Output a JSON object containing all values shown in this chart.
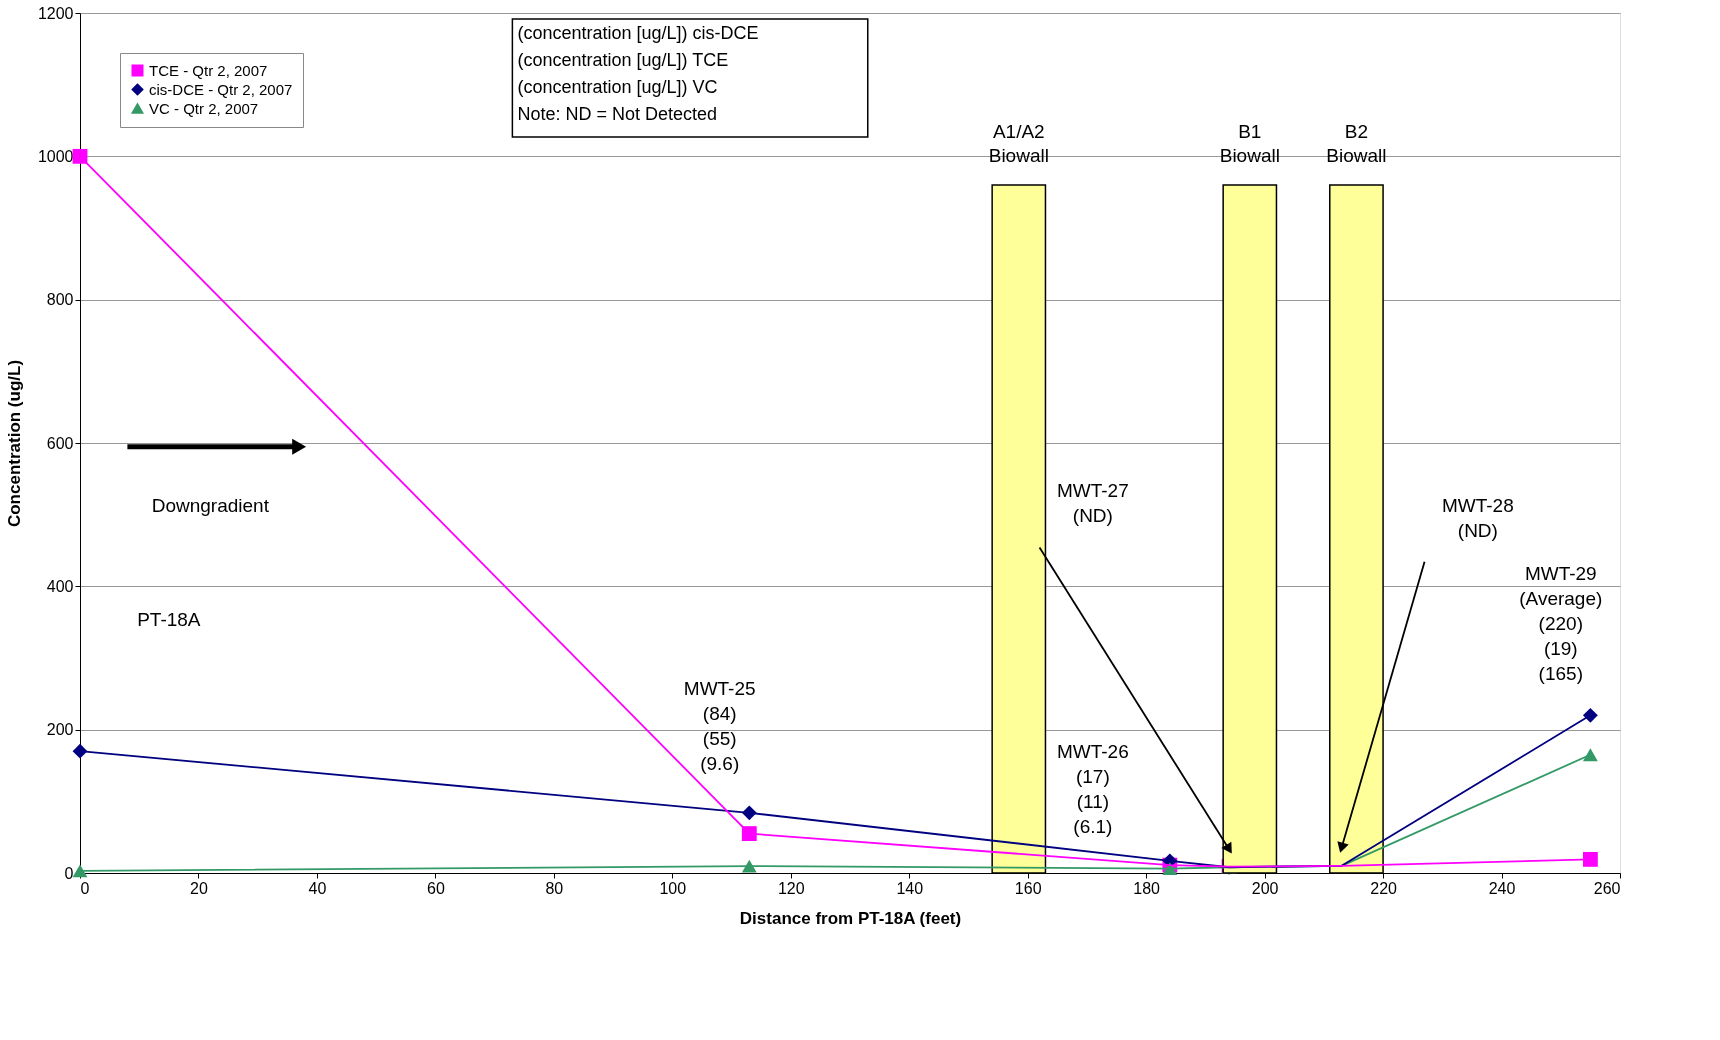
{
  "chart_data": {
    "type": "line",
    "xlabel": "Distance from PT-18A (feet)",
    "ylabel": "Concentration (ug/L)",
    "x": [
      0,
      113,
      184,
      194,
      213,
      255
    ],
    "series": [
      {
        "name": "TCE - Qtr 2, 2007",
        "color": "#ff00ff",
        "marker": "square",
        "values": [
          1000,
          55,
          11,
          9,
          10,
          19
        ]
      },
      {
        "name": "cis-DCE - Qtr 2, 2007",
        "color": "#000080",
        "marker": "diamond",
        "values": [
          170,
          84,
          17,
          8,
          10,
          220
        ]
      },
      {
        "name": "VC - Qtr 2, 2007",
        "color": "#339966",
        "marker": "triangle",
        "values": [
          3,
          9.6,
          6.1,
          8,
          10,
          165
        ]
      }
    ],
    "xlim": [
      0,
      260
    ],
    "xticks": [
      0,
      20,
      40,
      60,
      80,
      100,
      120,
      140,
      160,
      180,
      200,
      220,
      240,
      260
    ],
    "ylim": [
      0,
      1200
    ],
    "yticks": [
      0,
      200,
      400,
      600,
      800,
      1000,
      1200
    ],
    "grid": "y",
    "legend": "top left",
    "bands": [
      {
        "axis": "x",
        "from": 154,
        "to": 163,
        "label": "A1/A2\nBiowall",
        "color": "#ffff99"
      },
      {
        "axis": "x",
        "from": 193,
        "to": 202,
        "label": "B1\nBiowall",
        "color": "#ffff99"
      },
      {
        "axis": "x",
        "from": 211,
        "to": 220,
        "label": "B2\nBiowall",
        "color": "#ffff99"
      }
    ],
    "annotations": [
      "PT-18A",
      "MWT-25\n(84)\n(55)\n(9.6)",
      "MWT-26\n(17)\n(11)\n(6.1)",
      "MWT-27\n(ND)",
      "MWT-28\n(ND)",
      "MWT-29\n(Average)\n(220)\n(19)\n(165)",
      "Downgradient",
      "(concentration [ug/L]) cis-DCE",
      "(concentration [ug/L]) TCE",
      "(concentration [ug/L]) VC",
      "Note: ND = Not Detected"
    ]
  }
}
